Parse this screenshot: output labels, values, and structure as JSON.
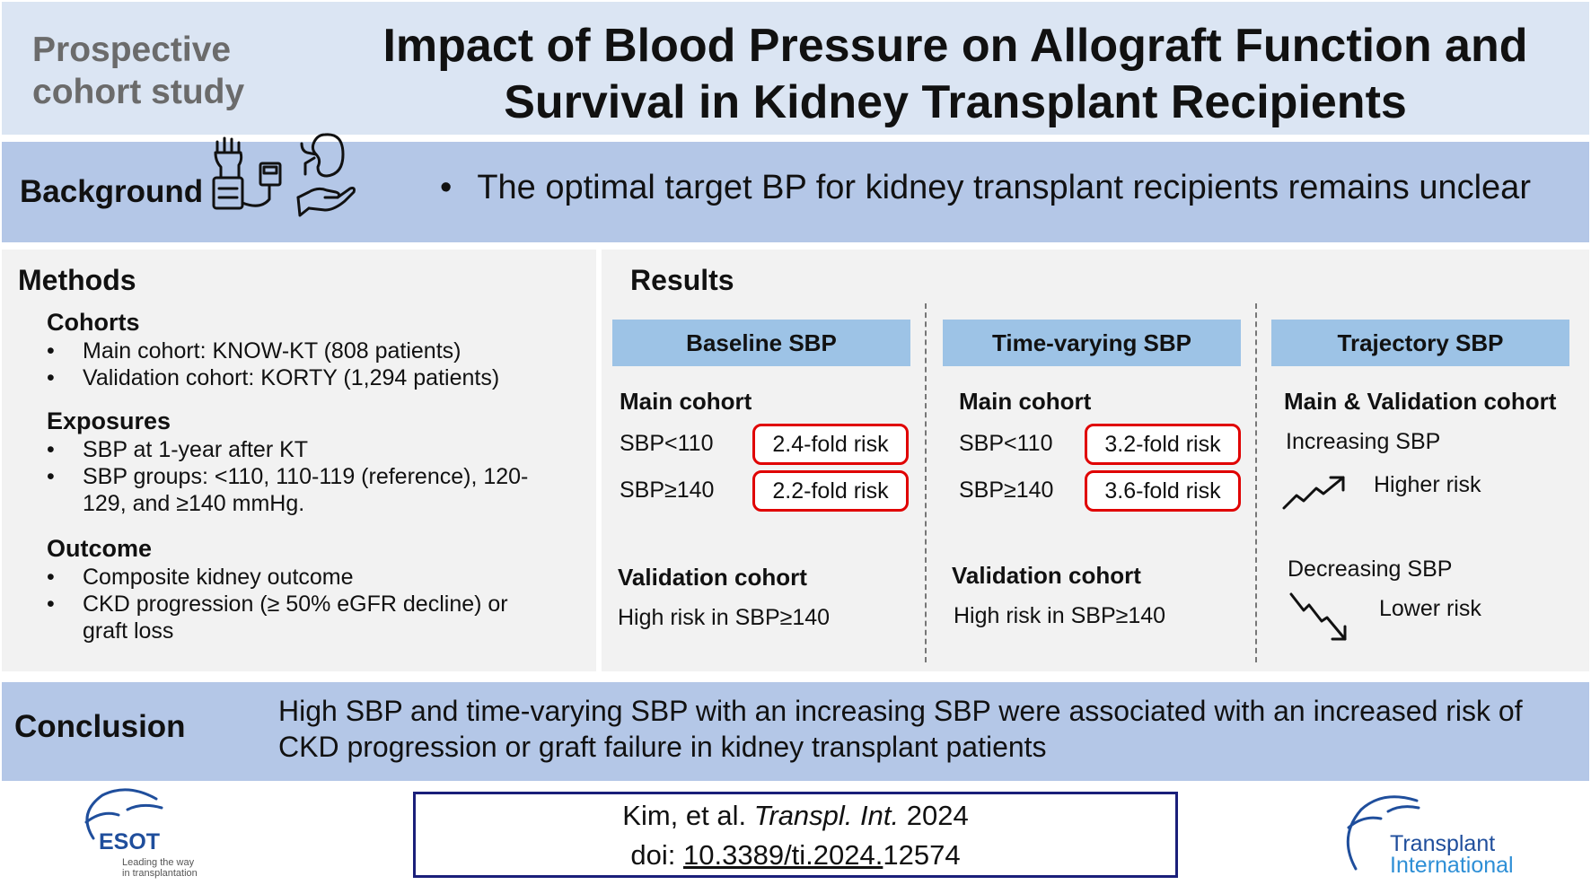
{
  "header": {
    "study_type_line1": "Prospective",
    "study_type_line2": "cohort study",
    "title_line1": "Impact of Blood Pressure on Allograft Function and",
    "title_line2": "Survival in Kidney Transplant Recipients"
  },
  "background": {
    "heading": "Background",
    "bullet": "The optimal target BP for kidney transplant recipients remains unclear",
    "icons": [
      "blood-pressure-monitor-icon",
      "kidney-in-hand-icon"
    ]
  },
  "methods": {
    "heading": "Methods",
    "cohorts": {
      "title": "Cohorts",
      "items": [
        "Main cohort: KNOW-KT (808 patients)",
        "Validation cohort: KORTY (1,294 patients)"
      ]
    },
    "exposures": {
      "title": "Exposures",
      "items": [
        "SBP at 1-year after KT",
        "SBP groups: <110, 110-119 (reference), 120-",
        "129, and ≥140 mmHg."
      ]
    },
    "outcome": {
      "title": "Outcome",
      "items": [
        "Composite kidney outcome",
        "CKD progression (≥ 50% eGFR decline) or",
        "graft loss"
      ]
    }
  },
  "results": {
    "heading": "Results",
    "baseline": {
      "header": "Baseline SBP",
      "main_label": "Main cohort",
      "row1_label": "SBP<110",
      "row1_risk": "2.4-fold risk",
      "row2_label": "SBP≥140",
      "row2_risk": "2.2-fold risk",
      "validation_label": "Validation cohort",
      "validation_text": "High risk in SBP≥140"
    },
    "time_varying": {
      "header": "Time-varying SBP",
      "main_label": "Main cohort",
      "row1_label": "SBP<110",
      "row1_risk": "3.2-fold risk",
      "row2_label": "SBP≥140",
      "row2_risk": "3.6-fold risk",
      "validation_label": "Validation cohort",
      "validation_text": "High risk in SBP≥140"
    },
    "trajectory": {
      "header": "Trajectory SBP",
      "cohort_label": "Main & Validation cohort",
      "increasing": "Increasing SBP",
      "higher_risk": "Higher risk",
      "decreasing": "Decreasing SBP",
      "lower_risk": "Lower risk"
    }
  },
  "conclusion": {
    "heading": "Conclusion",
    "line1": "High SBP and time-varying SBP with an increasing SBP were associated with an increased risk of",
    "line2": "CKD progression or graft failure in kidney transplant patients"
  },
  "citation": {
    "authors": "Kim, et al.",
    "journal": "Transpl. Int.",
    "year": "2024",
    "doi_prefix": "doi:",
    "doi_link": "10.3389/ti.2024.",
    "doi_suffix": "12574"
  },
  "logos": {
    "esot_name": "ESOT",
    "esot_tag_line1": "Leading the way",
    "esot_tag_line2": "in transplantation",
    "ti_line1": "Transplant",
    "ti_line2": "International"
  },
  "colors": {
    "header_bg": "#dbe5f3",
    "band_bg": "#b4c7e7",
    "column_head_bg": "#9dc3e6",
    "panel_bg": "#f2f2f2",
    "risk_border": "#e00000",
    "citation_border": "#1a1f7a"
  }
}
